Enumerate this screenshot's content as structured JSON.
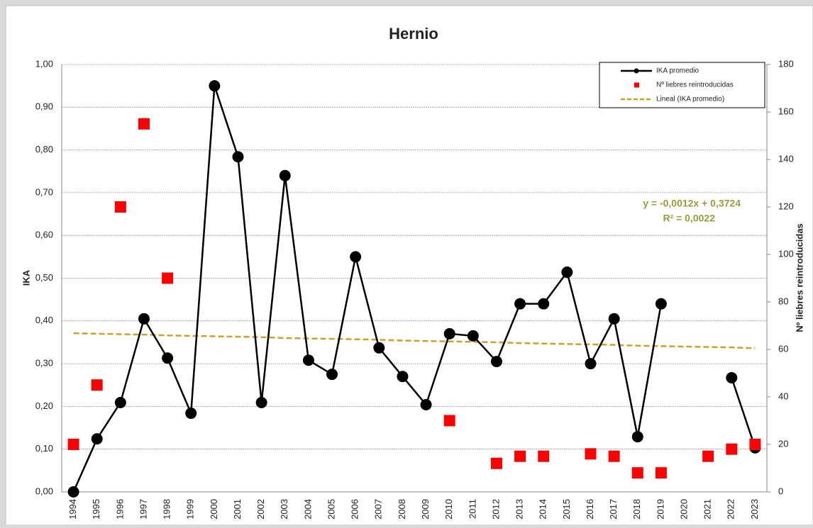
{
  "chart_data": {
    "type": "line",
    "title": "Hernio",
    "y_label": "IKA",
    "y2_label": "Nº liebres reintroducidas",
    "categories": [
      "1994",
      "1995",
      "1996",
      "1997",
      "1998",
      "1999",
      "2000",
      "2001",
      "2002",
      "2003",
      "2004",
      "2005",
      "2006",
      "2007",
      "2008",
      "2009",
      "2010",
      "2011",
      "2012",
      "2013",
      "2014",
      "2015",
      "2016",
      "2017",
      "2018",
      "2019",
      "2020",
      "2021",
      "2022",
      "2023"
    ],
    "series": [
      {
        "name": "IKA promedio",
        "kind": "line",
        "color": "#000000",
        "values": [
          0.0,
          0.124,
          0.209,
          0.405,
          0.313,
          0.184,
          0.95,
          0.784,
          0.209,
          0.74,
          0.308,
          0.275,
          0.55,
          0.337,
          0.27,
          0.204,
          0.37,
          0.365,
          0.305,
          0.44,
          0.44,
          0.514,
          0.3,
          0.405,
          0.129,
          0.44,
          null,
          null,
          0.267,
          0.103
        ]
      },
      {
        "name": "Nº liebres reintroducidas",
        "kind": "square",
        "color": "#ff0000",
        "axis": "y2",
        "values": [
          20,
          45,
          120,
          155,
          90,
          null,
          null,
          null,
          null,
          null,
          null,
          null,
          null,
          null,
          null,
          null,
          30,
          null,
          12,
          15,
          15,
          null,
          16,
          15,
          8,
          8,
          null,
          15,
          18,
          20
        ]
      },
      {
        "name": "Lineal (IKA promedio)",
        "kind": "dashed",
        "color": "#c9a227",
        "values": [
          0.371,
          0.37,
          0.369,
          0.368,
          0.366,
          0.365,
          0.364,
          0.363,
          0.362,
          0.36,
          0.359,
          0.358,
          0.357,
          0.356,
          0.354,
          0.353,
          0.352,
          0.351,
          0.35,
          0.348,
          0.347,
          0.346,
          0.345,
          0.344,
          0.342,
          0.341,
          0.34,
          0.339,
          0.338,
          0.336
        ]
      }
    ],
    "annotations": [
      "y = -0,0012x + 0,3724",
      "R² = 0,0022"
    ],
    "annotation_color": "#9c9b3a",
    "ylim": [
      0,
      1
    ],
    "yticks": [
      {
        "value": 0,
        "label": "0,00"
      },
      {
        "value": 0.1,
        "label": "0,10"
      },
      {
        "value": 0.2,
        "label": "0,20"
      },
      {
        "value": 0.3,
        "label": "0,30"
      },
      {
        "value": 0.4,
        "label": "0,40"
      },
      {
        "value": 0.5,
        "label": "0,50"
      },
      {
        "value": 0.6,
        "label": "0,60"
      },
      {
        "value": 0.7,
        "label": "0,70"
      },
      {
        "value": 0.8,
        "label": "0,80"
      },
      {
        "value": 0.9,
        "label": "0,90"
      },
      {
        "value": 1,
        "label": "1,00"
      }
    ],
    "y2lim": [
      0,
      180
    ],
    "y2ticks": [
      0,
      20,
      40,
      60,
      80,
      100,
      120,
      140,
      160,
      180
    ],
    "grid": true,
    "legend": "top-right"
  }
}
